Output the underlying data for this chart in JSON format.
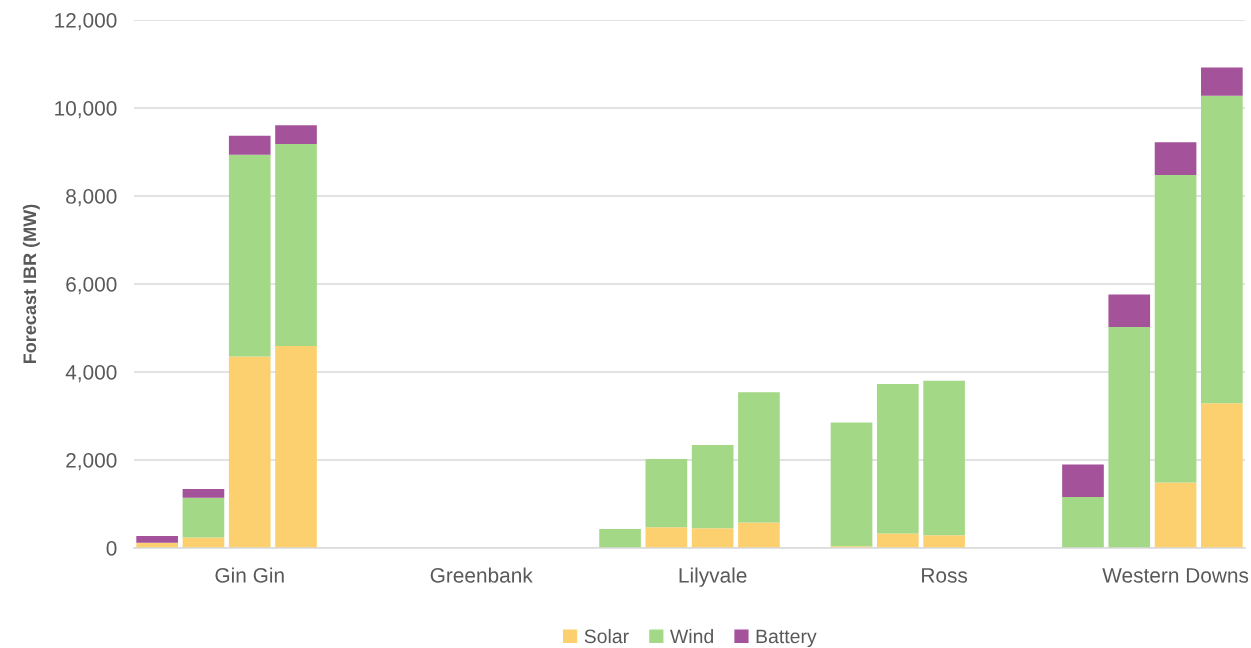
{
  "chart_data": {
    "type": "bar",
    "stacked": true,
    "ylabel": "Forecast IBR (MW)",
    "categories": [
      null,
      null,
      "Gin Gin",
      null,
      null,
      null,
      null,
      "Greenbank",
      null,
      null,
      null,
      null,
      "Lilyvale",
      null,
      null,
      null,
      null,
      "Ross",
      null,
      null,
      null,
      null,
      "Western Downs",
      null
    ],
    "series": [
      {
        "name": "Solar",
        "color": "#fcd06f",
        "values": [
          120,
          240,
          4350,
          4590,
          null,
          0,
          0,
          0,
          0,
          null,
          0,
          470,
          450,
          580,
          null,
          40,
          330,
          290,
          null,
          null,
          0,
          0,
          1490,
          3290
        ]
      },
      {
        "name": "Wind",
        "color": "#a3d886",
        "values": [
          0,
          900,
          4590,
          4590,
          null,
          0,
          0,
          0,
          0,
          null,
          430,
          1550,
          1890,
          2960,
          null,
          2810,
          3400,
          3510,
          null,
          null,
          1160,
          5020,
          6990,
          6990
        ]
      },
      {
        "name": "Battery",
        "color": "#a4529a",
        "values": [
          150,
          200,
          430,
          430,
          null,
          0,
          0,
          0,
          0,
          null,
          0,
          0,
          0,
          0,
          null,
          0,
          0,
          0,
          null,
          null,
          740,
          740,
          740,
          640
        ]
      }
    ],
    "ylim": [
      0,
      12000
    ],
    "yticks": [
      {
        "value": 0,
        "label": "0"
      },
      {
        "value": 2000,
        "label": "2,000"
      },
      {
        "value": 4000,
        "label": "4,000"
      },
      {
        "value": 6000,
        "label": "6,000"
      },
      {
        "value": 8000,
        "label": "8,000"
      },
      {
        "value": 10000,
        "label": "10,000"
      },
      {
        "value": 12000,
        "label": "12,000"
      }
    ],
    "grid": "y",
    "legend": "bottom"
  }
}
